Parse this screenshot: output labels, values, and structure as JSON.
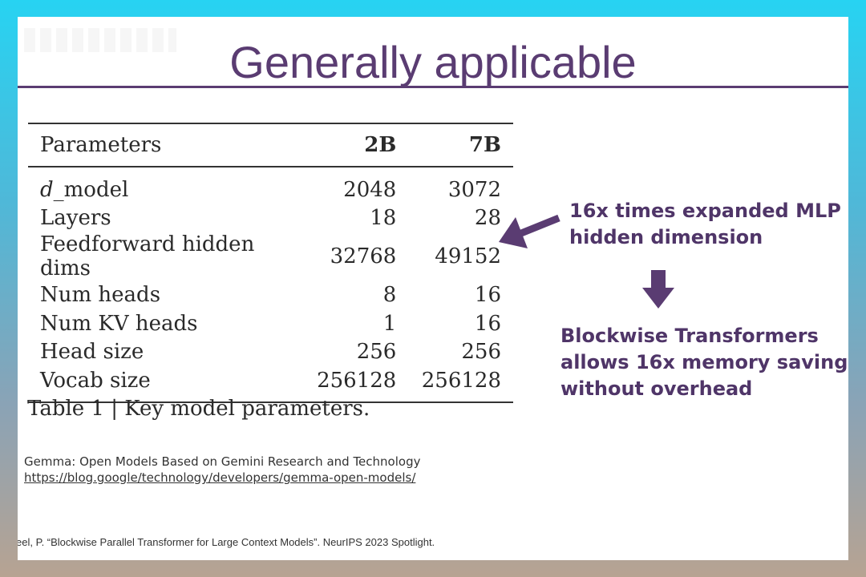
{
  "slide": {
    "title": "Generally applicable"
  },
  "table": {
    "headers": [
      "Parameters",
      "2B",
      "7B"
    ],
    "rows": [
      {
        "label_italic": "d",
        "label_rest": "_model",
        "v2b": "2048",
        "v7b": "3072"
      },
      {
        "label": "Layers",
        "v2b": "18",
        "v7b": "28"
      },
      {
        "label": "Feedforward hidden dims",
        "v2b": "32768",
        "v7b": "49152"
      },
      {
        "label": "Num heads",
        "v2b": "8",
        "v7b": "16"
      },
      {
        "label": "Num KV heads",
        "v2b": "1",
        "v7b": "16"
      },
      {
        "label": "Head size",
        "v2b": "256",
        "v7b": "256"
      },
      {
        "label": "Vocab size",
        "v2b": "256128",
        "v7b": "256128"
      }
    ],
    "caption": "Table 1 | Key model parameters."
  },
  "annotations": {
    "mlp_line1": "16x times expanded MLP",
    "mlp_line2": "hidden dimension",
    "blockwise_line1": "Blockwise Transformers",
    "blockwise_line2": "allows 16x memory saving",
    "blockwise_line3": "without overhead"
  },
  "references": {
    "gemma_title": "Gemma: Open Models Based on Gemini Research and Technology",
    "gemma_url": "https://blog.google/technology/developers/gemma-open-models/",
    "blockwise": "eel, P. “Blockwise Parallel Transformer for Large Context Models”. NeurIPS 2023 Spotlight."
  },
  "colors": {
    "accent": "#5a3c72",
    "annotation": "#4f3568",
    "background_top": "#27d3f2"
  },
  "icons": [
    "arrow-left-icon",
    "arrow-down-icon"
  ]
}
